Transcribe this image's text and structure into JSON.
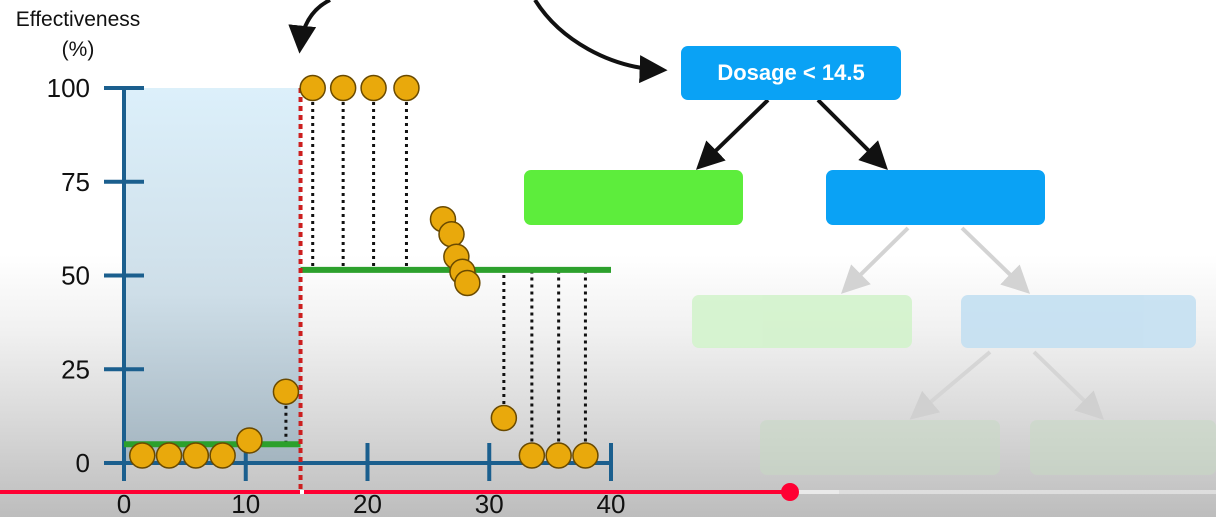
{
  "chart_data": {
    "type": "scatter",
    "ylabel_lines": [
      "Effectiveness",
      "(%)"
    ],
    "xlim": [
      0,
      40
    ],
    "ylim": [
      0,
      100
    ],
    "x_ticks": [
      "0",
      "10",
      "20",
      "30",
      "40"
    ],
    "y_ticks": [
      "0",
      "25",
      "50",
      "75",
      "100"
    ],
    "points": [
      {
        "x": 1.5,
        "y": 2
      },
      {
        "x": 3.7,
        "y": 2
      },
      {
        "x": 5.9,
        "y": 2
      },
      {
        "x": 8.1,
        "y": 2
      },
      {
        "x": 10.3,
        "y": 6
      },
      {
        "x": 13.3,
        "y": 19
      },
      {
        "x": 15.5,
        "y": 100
      },
      {
        "x": 18.0,
        "y": 100
      },
      {
        "x": 20.5,
        "y": 100
      },
      {
        "x": 23.2,
        "y": 100
      },
      {
        "x": 26.2,
        "y": 65
      },
      {
        "x": 26.9,
        "y": 61
      },
      {
        "x": 27.3,
        "y": 55
      },
      {
        "x": 27.8,
        "y": 51
      },
      {
        "x": 28.2,
        "y": 48
      },
      {
        "x": 31.2,
        "y": 12
      },
      {
        "x": 33.5,
        "y": 2
      },
      {
        "x": 35.7,
        "y": 2
      },
      {
        "x": 37.9,
        "y": 2
      }
    ],
    "split_at": 14.5,
    "left_prediction": {
      "x_from": 0,
      "x_to": 14.5,
      "y": 5
    },
    "right_prediction": {
      "x_from": 14.5,
      "x_to": 40,
      "y": 51.5
    },
    "residual_points_from": 6
  },
  "tree": {
    "root_label": "Dosage < 14.5"
  },
  "colors": {
    "axis": "#1b5f8e",
    "point_fill": "#e9a90c",
    "point_stroke": "#6a4a00",
    "prediction_line": "#2ca02c",
    "split_line": "#cc1f1f",
    "shaded_region": "#cfe9f7",
    "root_node": "#0aa2f5",
    "left_child": "#5ded3c",
    "right_child": "#0aa2f5"
  },
  "player": {
    "played_fraction": 0.65,
    "buffered_fraction": 0.69
  }
}
